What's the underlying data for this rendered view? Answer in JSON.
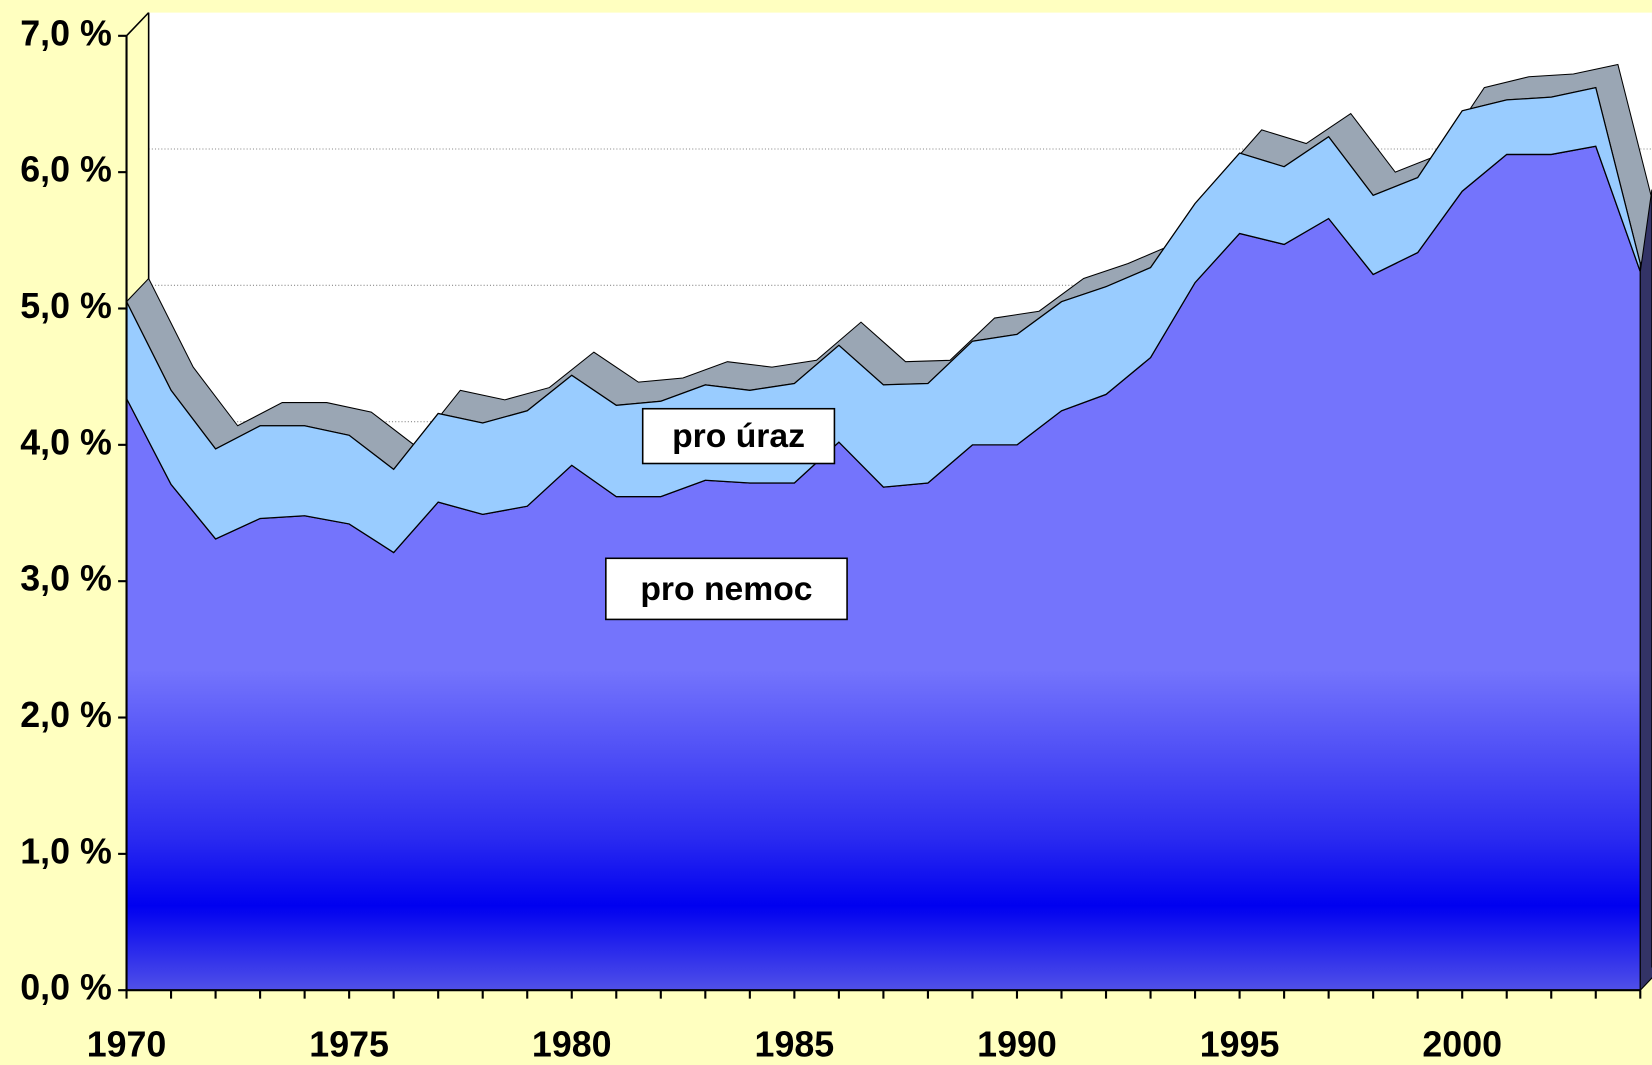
{
  "chart_data": {
    "type": "stacked-area",
    "x": [
      1970,
      1971,
      1972,
      1973,
      1974,
      1975,
      1976,
      1977,
      1978,
      1979,
      1980,
      1981,
      1982,
      1983,
      1984,
      1985,
      1986,
      1987,
      1988,
      1989,
      1990,
      1991,
      1992,
      1993,
      1994,
      1995,
      1996,
      1997,
      1998,
      1999,
      2000,
      2001,
      2002,
      2003,
      2004
    ],
    "series": [
      {
        "name": "pro nemoc",
        "color": "#7474fc",
        "values": [
          4.34,
          3.71,
          3.31,
          3.46,
          3.48,
          3.42,
          3.21,
          3.58,
          3.49,
          3.55,
          3.85,
          3.62,
          3.62,
          3.74,
          3.72,
          3.72,
          4.02,
          3.69,
          3.72,
          4.0,
          4.0,
          4.25,
          4.37,
          4.64,
          5.19,
          5.55,
          5.47,
          5.66,
          5.25,
          5.41,
          5.86,
          6.13,
          6.13,
          6.19,
          5.27
        ]
      },
      {
        "name": "pro úraz",
        "color": "#99ccff",
        "values": [
          0.71,
          0.69,
          0.66,
          0.68,
          0.66,
          0.65,
          0.61,
          0.65,
          0.67,
          0.7,
          0.66,
          0.67,
          0.7,
          0.7,
          0.68,
          0.73,
          0.71,
          0.75,
          0.73,
          0.76,
          0.81,
          0.8,
          0.79,
          0.66,
          0.58,
          0.59,
          0.57,
          0.6,
          0.58,
          0.55,
          0.59,
          0.4,
          0.42,
          0.43,
          0.06
        ]
      }
    ],
    "xlim": [
      1970,
      2004
    ],
    "xticks": [
      1970,
      1975,
      1980,
      1985,
      1990,
      1995,
      2000
    ],
    "ylim": [
      0,
      7
    ],
    "yticks": [
      {
        "value": 0,
        "label": "0,0 %"
      },
      {
        "value": 1,
        "label": "1,0 %"
      },
      {
        "value": 2,
        "label": "2,0 %"
      },
      {
        "value": 3,
        "label": "3,0 %"
      },
      {
        "value": 4,
        "label": "4,0 %"
      },
      {
        "value": 5,
        "label": "5,0 %"
      },
      {
        "value": 6,
        "label": "6,0 %"
      },
      {
        "value": 7,
        "label": "7,0 %"
      }
    ],
    "grid": true
  }
}
